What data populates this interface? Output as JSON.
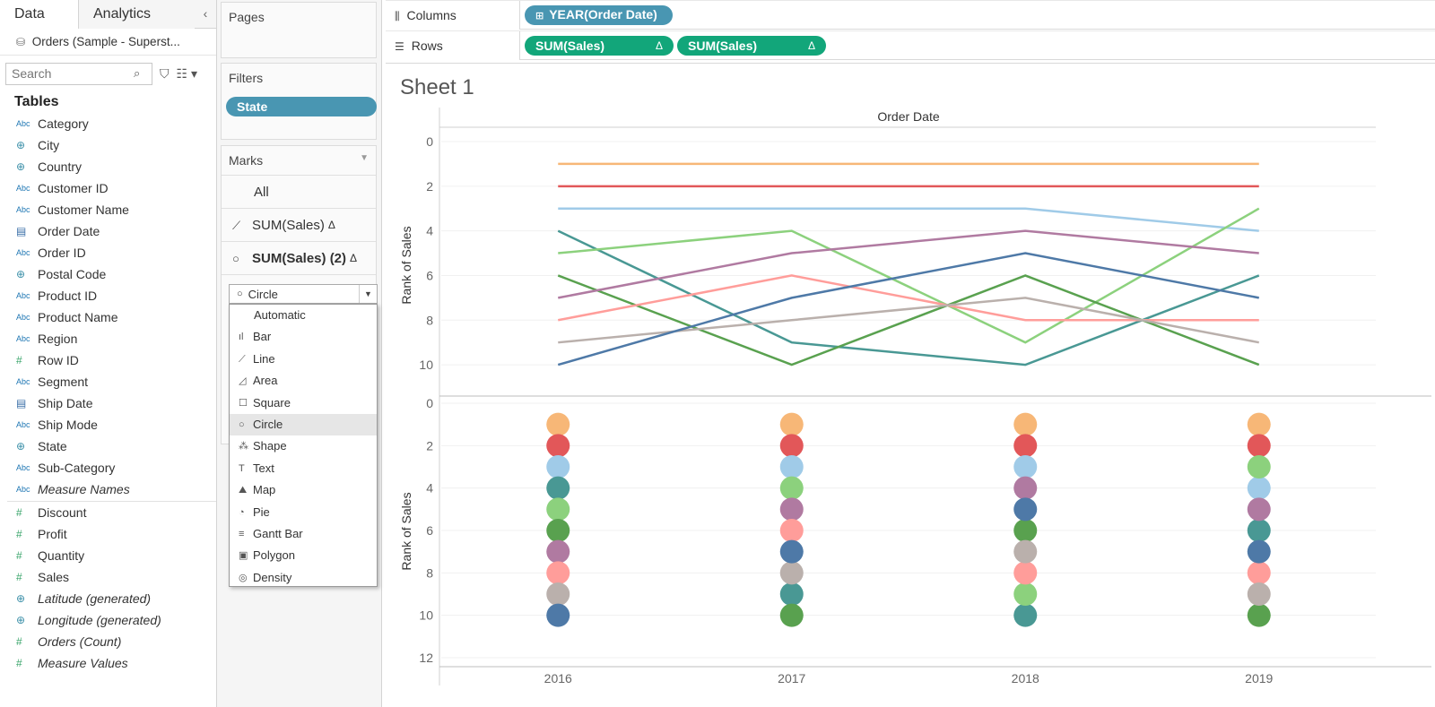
{
  "data_pane": {
    "tabs": [
      {
        "label": "Data"
      },
      {
        "label": "Analytics"
      }
    ],
    "collapse_icon": "chevron-left-icon",
    "datasource": "Orders (Sample - Superst...",
    "search_placeholder": "Search",
    "tables_header": "Tables",
    "dimensions": [
      {
        "label": "Category",
        "type": "Abc"
      },
      {
        "label": "City",
        "type": "geo"
      },
      {
        "label": "Country",
        "type": "geo"
      },
      {
        "label": "Customer ID",
        "type": "Abc"
      },
      {
        "label": "Customer Name",
        "type": "Abc"
      },
      {
        "label": "Order Date",
        "type": "date"
      },
      {
        "label": "Order ID",
        "type": "Abc"
      },
      {
        "label": "Postal Code",
        "type": "geo"
      },
      {
        "label": "Product ID",
        "type": "Abc"
      },
      {
        "label": "Product Name",
        "type": "Abc"
      },
      {
        "label": "Region",
        "type": "Abc"
      },
      {
        "label": "Row ID",
        "type": "num"
      },
      {
        "label": "Segment",
        "type": "Abc"
      },
      {
        "label": "Ship Date",
        "type": "date"
      },
      {
        "label": "Ship Mode",
        "type": "Abc"
      },
      {
        "label": "State",
        "type": "geo"
      },
      {
        "label": "Sub-Category",
        "type": "Abc"
      },
      {
        "label": "Measure Names",
        "type": "Abc",
        "italic": true
      }
    ],
    "measures": [
      {
        "label": "Discount",
        "type": "num"
      },
      {
        "label": "Profit",
        "type": "num"
      },
      {
        "label": "Quantity",
        "type": "num"
      },
      {
        "label": "Sales",
        "type": "num"
      },
      {
        "label": "Latitude (generated)",
        "type": "geo",
        "italic": true
      },
      {
        "label": "Longitude (generated)",
        "type": "geo",
        "italic": true
      },
      {
        "label": "Orders (Count)",
        "type": "num",
        "italic": true
      },
      {
        "label": "Measure Values",
        "type": "num",
        "italic": true
      }
    ]
  },
  "cards": {
    "pages_title": "Pages",
    "filters_title": "Filters",
    "filter_pill": "State",
    "marks_title": "Marks",
    "marks_rows": [
      {
        "label": "All"
      },
      {
        "label": "SUM(Sales)",
        "delta": "Δ"
      },
      {
        "label": "SUM(Sales) (2)",
        "delta": "Δ"
      }
    ],
    "mark_type_selected": "Circle",
    "mark_type_options": [
      {
        "label": "Automatic",
        "icon": ""
      },
      {
        "label": "Bar",
        "icon": "bar-icon"
      },
      {
        "label": "Line",
        "icon": "line-icon"
      },
      {
        "label": "Area",
        "icon": "area-icon"
      },
      {
        "label": "Square",
        "icon": "square-icon"
      },
      {
        "label": "Circle",
        "icon": "circle-icon"
      },
      {
        "label": "Shape",
        "icon": "shape-icon"
      },
      {
        "label": "Text",
        "icon": "text-icon"
      },
      {
        "label": "Map",
        "icon": "map-icon"
      },
      {
        "label": "Pie",
        "icon": "pie-icon"
      },
      {
        "label": "Gantt Bar",
        "icon": "gantt-icon"
      },
      {
        "label": "Polygon",
        "icon": "polygon-icon"
      },
      {
        "label": "Density",
        "icon": "density-icon"
      }
    ]
  },
  "shelves": {
    "columns_label": "Columns",
    "rows_label": "Rows",
    "column_pill": "YEAR(Order Date)",
    "row_pills": [
      {
        "label": "SUM(Sales)",
        "delta": "Δ"
      },
      {
        "label": "SUM(Sales)",
        "delta": "Δ"
      }
    ]
  },
  "sheet_title": "Sheet 1",
  "chart_data": {
    "type": "line",
    "header": "Order Date",
    "ylabel": "Rank of Sales",
    "x": [
      "2016",
      "2017",
      "2018",
      "2019"
    ],
    "top_pane": {
      "ylim": [
        0,
        11
      ],
      "ticks": [
        0,
        2,
        4,
        6,
        8,
        10
      ],
      "mark": "line"
    },
    "bottom_pane": {
      "ylim": [
        0,
        12
      ],
      "ticks": [
        0,
        2,
        4,
        6,
        8,
        10,
        12
      ],
      "mark": "circle"
    },
    "series": [
      {
        "color": "#f7b777",
        "values": [
          1,
          1,
          1,
          1
        ]
      },
      {
        "color": "#e25759",
        "values": [
          2,
          2,
          2,
          2
        ]
      },
      {
        "color": "#a0cbe8",
        "values": [
          3,
          3,
          3,
          4
        ]
      },
      {
        "color": "#499894",
        "values": [
          4,
          9,
          10,
          6
        ]
      },
      {
        "color": "#8cd17d",
        "values": [
          5,
          4,
          9,
          3
        ]
      },
      {
        "color": "#59a14f",
        "values": [
          6,
          10,
          6,
          10
        ]
      },
      {
        "color": "#b07aa1",
        "values": [
          7,
          5,
          4,
          5
        ]
      },
      {
        "color": "#ff9d9a",
        "values": [
          8,
          6,
          8,
          8
        ]
      },
      {
        "color": "#bab0ac",
        "values": [
          9,
          8,
          7,
          9
        ]
      },
      {
        "color": "#4e79a7",
        "values": [
          10,
          7,
          5,
          7
        ]
      }
    ]
  }
}
